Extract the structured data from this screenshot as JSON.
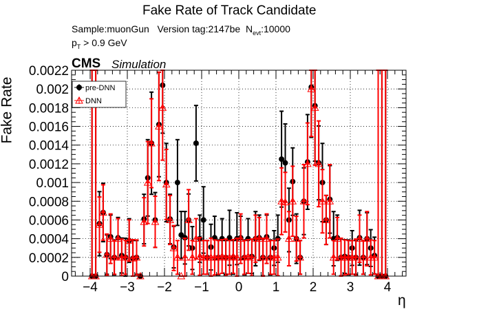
{
  "title": "Fake Rate of Track Candidate",
  "info": {
    "sample": "Sample:muonGun",
    "version": "Version tag:2147be",
    "nevt_N": "N",
    "nevt_sub": "evt",
    "nevt_val": ":10000",
    "pt_p": "p",
    "pt_sub": "T",
    "pt_cut": " > 0.9 GeV"
  },
  "cms_label": "CMS",
  "sim_label": "Simulation",
  "colors": {
    "pre_dnn": "#000000",
    "dnn": "#ff0000"
  },
  "chart_data": {
    "type": "scatter",
    "xlabel": "η",
    "ylabel": "Fake Rate",
    "xlim": [
      -4.5,
      4.5
    ],
    "ylim": [
      0,
      0.0022
    ],
    "grid": true,
    "legend_position": "top-left",
    "x_ticks": [
      "−4",
      "−3",
      "−2",
      "−1",
      "0",
      "1",
      "2",
      "3",
      "4"
    ],
    "y_ticks": [
      "0",
      "0.0002",
      "0.0004",
      "0.0006",
      "0.0008",
      "0.001",
      "0.0012",
      "0.0014",
      "0.0016",
      "0.0018",
      "0.002",
      "0.0022"
    ],
    "series": [
      {
        "name": "pre-DNN",
        "marker": "filled-circle",
        "points": [
          [
            -3.95,
            0
          ],
          [
            -3.85,
            0
          ],
          [
            -3.75,
            0.00056
          ],
          [
            -3.65,
            0.00068
          ],
          [
            -3.55,
            0.00023
          ],
          [
            -3.45,
            0.00042
          ],
          [
            -3.35,
            0.0002
          ],
          [
            -3.25,
            0.00041
          ],
          [
            -3.15,
            0.00022
          ],
          [
            -3.05,
            0.0002
          ],
          [
            -2.95,
            0.00038
          ],
          [
            -2.85,
            0.00019
          ],
          [
            -2.75,
            0.0002
          ],
          [
            -2.65,
            0
          ],
          [
            -2.55,
            0.00061
          ],
          [
            -2.45,
            0.00105
          ],
          [
            -2.35,
            0.00142
          ],
          [
            -2.25,
            0.0006
          ],
          [
            -2.15,
            0.00162
          ],
          [
            -2.05,
            0.00204
          ],
          [
            -1.95,
            0.001
          ],
          [
            -1.85,
            0.00061
          ],
          [
            -1.75,
            0.00031
          ],
          [
            -1.65,
            0.001
          ],
          [
            -1.55,
            0.00044
          ],
          [
            -1.45,
            0.00041
          ],
          [
            -1.35,
            0.0006
          ],
          [
            -1.25,
            0.0003
          ],
          [
            -1.15,
            0.00142
          ],
          [
            -1.05,
            0.0004
          ],
          [
            -0.95,
            0.0006
          ],
          [
            -0.85,
            0.0002
          ],
          [
            -0.75,
            0.00031
          ],
          [
            -0.65,
            0.00041
          ],
          [
            -0.55,
            0.0002
          ],
          [
            -0.45,
            0.0004
          ],
          [
            -0.35,
            0.0002
          ],
          [
            -0.25,
            0.00041
          ],
          [
            -0.15,
            0.0002
          ],
          [
            -0.05,
            0.0004
          ],
          [
            0.05,
            0.00041
          ],
          [
            0.15,
            0.0002
          ],
          [
            0.25,
            0.0004
          ],
          [
            0.35,
            0.00021
          ],
          [
            0.45,
            0.0004
          ],
          [
            0.55,
            0.00041
          ],
          [
            0.65,
            0.0002
          ],
          [
            0.75,
            0.00042
          ],
          [
            0.85,
            0.0002
          ],
          [
            0.95,
            0.0003
          ],
          [
            1.05,
            0.0004
          ],
          [
            1.15,
            0.00125
          ],
          [
            1.25,
            0.00121
          ],
          [
            1.35,
            0.0006
          ],
          [
            1.45,
            0.00101
          ],
          [
            1.55,
            0.0004
          ],
          [
            1.65,
            0.0002
          ],
          [
            1.75,
            0.0008
          ],
          [
            1.85,
            0.00122
          ],
          [
            1.95,
            0.00202
          ],
          [
            2.05,
            0.00182
          ],
          [
            2.15,
            0.00121
          ],
          [
            2.25,
            0.001
          ],
          [
            2.35,
            0.0006
          ],
          [
            2.45,
            0.00082
          ],
          [
            2.55,
            0.0004
          ],
          [
            2.65,
            0.00041
          ],
          [
            2.75,
            0.0002
          ],
          [
            2.85,
            0.00021
          ],
          [
            2.95,
            0.0002
          ],
          [
            3.05,
            0.0003
          ],
          [
            3.15,
            0.0002
          ],
          [
            3.25,
            0.00041
          ],
          [
            3.35,
            0.0002
          ],
          [
            3.45,
            0.0004
          ],
          [
            3.55,
            0.0003
          ],
          [
            3.65,
            0.00022
          ],
          [
            3.75,
            0
          ],
          [
            3.85,
            0
          ],
          [
            3.95,
            0
          ]
        ]
      },
      {
        "name": "DNN",
        "marker": "open-triangle",
        "points": [
          [
            -3.95,
            0
          ],
          [
            -3.85,
            0
          ],
          [
            -3.75,
            0.00055
          ],
          [
            -3.65,
            0.00068
          ],
          [
            -3.55,
            0.00023
          ],
          [
            -3.45,
            0.0004
          ],
          [
            -3.35,
            0.0002
          ],
          [
            -3.25,
            0.0004
          ],
          [
            -3.15,
            0.0002
          ],
          [
            -3.05,
            0.0002
          ],
          [
            -2.95,
            0.00038
          ],
          [
            -2.85,
            0.00019
          ],
          [
            -2.75,
            0.0002
          ],
          [
            -2.65,
            0
          ],
          [
            -2.55,
            0.00058
          ],
          [
            -2.45,
            0.001
          ],
          [
            -2.35,
            0.00142
          ],
          [
            -2.25,
            0.00058
          ],
          [
            -2.15,
            0.0016
          ],
          [
            -2.05,
            0.0018
          ],
          [
            -1.95,
            0.00098
          ],
          [
            -1.85,
            0.0006
          ],
          [
            -1.75,
            0.0003
          ],
          [
            -1.65,
            0.0002
          ],
          [
            -1.55,
            0
          ],
          [
            -1.45,
            0.0002
          ],
          [
            -1.35,
            0.0006
          ],
          [
            -1.25,
            0.0002
          ],
          [
            -1.15,
            0.0004
          ],
          [
            -1.05,
            0.00021
          ],
          [
            -0.95,
            0.0002
          ],
          [
            -0.85,
            0.0002
          ],
          [
            -0.75,
            0.0002
          ],
          [
            -0.65,
            0.0002
          ],
          [
            -0.55,
            0.0002
          ],
          [
            -0.45,
            0.00021
          ],
          [
            -0.35,
            0.0002
          ],
          [
            -0.25,
            0.0002
          ],
          [
            -0.15,
            0.00021
          ],
          [
            -0.05,
            0.0002
          ],
          [
            0.05,
            0.0004
          ],
          [
            0.15,
            0.0002
          ],
          [
            0.25,
            0.00021
          ],
          [
            0.35,
            0.0002
          ],
          [
            0.45,
            0.0004
          ],
          [
            0.55,
            0.0004
          ],
          [
            0.65,
            0.0002
          ],
          [
            0.75,
            0.0004
          ],
          [
            0.85,
            0.0002
          ],
          [
            0.95,
            0.0002
          ],
          [
            1.05,
            0.0002
          ],
          [
            1.15,
            0.0008
          ],
          [
            1.25,
            0.00079
          ],
          [
            1.35,
            0.0004
          ],
          [
            1.45,
            0.0008
          ],
          [
            1.55,
            0.0004
          ],
          [
            1.65,
            0.0002
          ],
          [
            1.75,
            0.0008
          ],
          [
            1.85,
            0.0012
          ],
          [
            1.95,
            0.002
          ],
          [
            2.05,
            0.0018
          ],
          [
            2.15,
            0.0012
          ],
          [
            2.25,
            0.0008
          ],
          [
            2.35,
            0.0006
          ],
          [
            2.45,
            0.0008
          ],
          [
            2.55,
            0.0002
          ],
          [
            2.65,
            0.0004
          ],
          [
            2.75,
            0.0002
          ],
          [
            2.85,
            0.0002
          ],
          [
            2.95,
            0.0002
          ],
          [
            3.05,
            0.0002
          ],
          [
            3.15,
            0.0002
          ],
          [
            3.25,
            0.0004
          ],
          [
            3.35,
            0.0002
          ],
          [
            3.45,
            0.0004
          ],
          [
            3.55,
            0.0002
          ],
          [
            3.65,
            0.0002
          ],
          [
            3.75,
            0
          ],
          [
            3.85,
            0
          ],
          [
            3.95,
            0
          ]
        ]
      }
    ]
  }
}
